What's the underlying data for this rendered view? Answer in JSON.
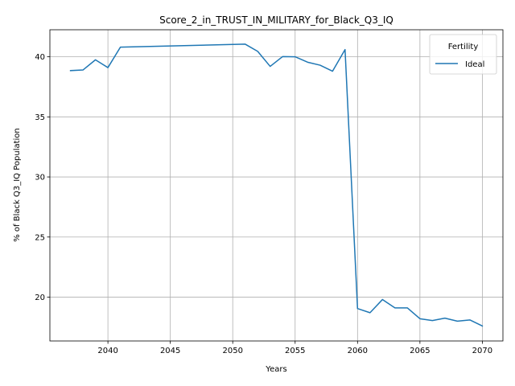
{
  "chart_data": {
    "type": "line",
    "title": "Score_2_in_TRUST_IN_MILITARY_for_Black_Q3_IQ",
    "xlabel": "Years",
    "ylabel": "% of Black Q3_IQ Population",
    "xlim": [
      2035.35,
      2071.65
    ],
    "ylim": [
      16.35,
      42.25
    ],
    "xticks": [
      2040,
      2045,
      2050,
      2055,
      2060,
      2065,
      2070
    ],
    "yticks": [
      20,
      25,
      30,
      35,
      40
    ],
    "grid": true,
    "legend": {
      "title": "Fertility",
      "position": "top-right"
    },
    "series": [
      {
        "name": "Ideal",
        "color": "#1f77b4",
        "x": [
          2037,
          2038,
          2039,
          2040,
          2041,
          2051,
          2052,
          2053,
          2054,
          2055,
          2056,
          2057,
          2058,
          2059,
          2060,
          2061,
          2062,
          2063,
          2064,
          2065,
          2066,
          2067,
          2068,
          2069,
          2070
        ],
        "y": [
          38.85,
          38.9,
          39.75,
          39.1,
          40.8,
          41.05,
          40.45,
          39.2,
          40.02,
          40.0,
          39.55,
          39.3,
          38.8,
          40.6,
          19.05,
          18.7,
          19.8,
          19.1,
          19.1,
          18.2,
          18.05,
          18.25,
          18.0,
          18.1,
          17.6
        ]
      }
    ]
  }
}
